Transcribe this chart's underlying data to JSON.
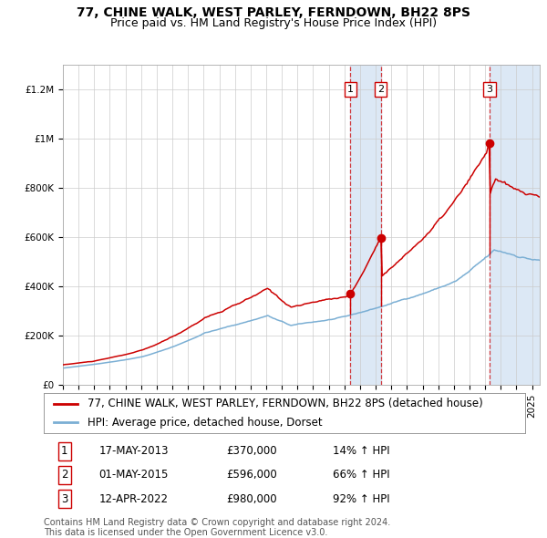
{
  "title1": "77, CHINE WALK, WEST PARLEY, FERNDOWN, BH22 8PS",
  "title2": "Price paid vs. HM Land Registry's House Price Index (HPI)",
  "ylim": [
    0,
    1300000
  ],
  "yticks": [
    0,
    200000,
    400000,
    600000,
    800000,
    1000000,
    1200000
  ],
  "ytick_labels": [
    "£0",
    "£200K",
    "£400K",
    "£600K",
    "£800K",
    "£1M",
    "£1.2M"
  ],
  "background_color": "#ffffff",
  "grid_color": "#cccccc",
  "sale_color": "#cc0000",
  "hpi_color": "#7bafd4",
  "sale_prices": [
    370000,
    596000,
    980000
  ],
  "sale_labels": [
    "1",
    "2",
    "3"
  ],
  "sale_decimal": [
    2013.375,
    2015.333,
    2022.28
  ],
  "vspan_ranges": [
    [
      2013.375,
      2015.333
    ],
    [
      2022.28,
      2025.5
    ]
  ],
  "legend_line1": "77, CHINE WALK, WEST PARLEY, FERNDOWN, BH22 8PS (detached house)",
  "legend_line2": "HPI: Average price, detached house, Dorset",
  "table_rows": [
    {
      "num": "1",
      "date": "17-MAY-2013",
      "price": "£370,000",
      "change": "14% ↑ HPI"
    },
    {
      "num": "2",
      "date": "01-MAY-2015",
      "price": "£596,000",
      "change": "66% ↑ HPI"
    },
    {
      "num": "3",
      "date": "12-APR-2022",
      "price": "£980,000",
      "change": "92% ↑ HPI"
    }
  ],
  "footer": "Contains HM Land Registry data © Crown copyright and database right 2024.\nThis data is licensed under the Open Government Licence v3.0.",
  "title_fontsize": 10,
  "subtitle_fontsize": 9,
  "tick_fontsize": 7.5,
  "legend_fontsize": 8.5
}
